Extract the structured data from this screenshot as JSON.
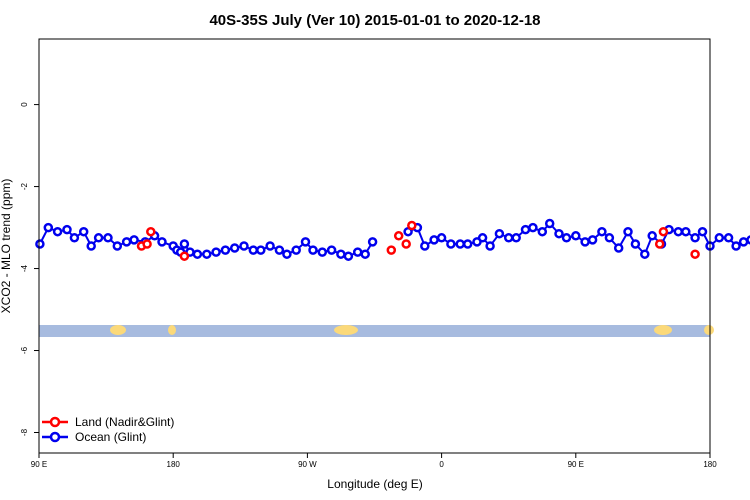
{
  "chart_data": {
    "type": "line",
    "title": "40S-35S July (Ver 10)   2015-01-01 to 2020-12-18",
    "xlabel": "Longitude (deg E)",
    "ylabel": "XCO2 - MLO trend (ppm)",
    "xlim": [
      90,
      450
    ],
    "ylim": [
      -8.5,
      1.6
    ],
    "x_tick_labels": [
      "90 E",
      "180",
      "90 W",
      "0",
      "90 E",
      "180"
    ],
    "x_tick_values": [
      90,
      180,
      270,
      360,
      450,
      540
    ],
    "y_tick_values": [
      0,
      -2,
      -4,
      -6,
      -8
    ],
    "grid": false,
    "legend_position": "bottom-left",
    "series": [
      {
        "name": "Land (Nadir&Glint)",
        "color": "#ff0000",
        "points": [
          [
            145,
            -3.45
          ],
          [
            148,
            -3.4
          ],
          [
            150,
            -3.1
          ],
          [
            168,
            -3.7
          ],
          [
            279,
            -3.55
          ],
          [
            283,
            -3.2
          ],
          [
            287,
            -3.4
          ],
          [
            290,
            -2.95
          ],
          [
            423,
            -3.4
          ],
          [
            425,
            -3.1
          ],
          [
            442,
            -3.65
          ]
        ]
      },
      {
        "name": "Ocean (Glint)",
        "color": "#0000ee",
        "points": [
          [
            90.5,
            -3.4
          ],
          [
            95,
            -3.0
          ],
          [
            100,
            -3.1
          ],
          [
            105,
            -3.05
          ],
          [
            109,
            -3.25
          ],
          [
            114,
            -3.1
          ],
          [
            118,
            -3.45
          ],
          [
            122,
            -3.25
          ],
          [
            127,
            -3.25
          ],
          [
            132,
            -3.45
          ],
          [
            137,
            -3.35
          ],
          [
            141,
            -3.3
          ],
          [
            147,
            -3.35
          ],
          [
            152,
            -3.2
          ],
          [
            156,
            -3.35
          ],
          [
            162,
            -3.45
          ],
          [
            164,
            -3.55
          ],
          [
            166,
            -3.6
          ],
          [
            168,
            -3.4
          ],
          [
            171,
            -3.6
          ],
          [
            175,
            -3.65
          ],
          [
            180,
            -3.65
          ],
          [
            185,
            -3.6
          ],
          [
            190,
            -3.55
          ],
          [
            195,
            -3.5
          ],
          [
            200,
            -3.45
          ],
          [
            205,
            -3.55
          ],
          [
            209,
            -3.55
          ],
          [
            214,
            -3.45
          ],
          [
            219,
            -3.55
          ],
          [
            223,
            -3.65
          ],
          [
            228,
            -3.55
          ],
          [
            233,
            -3.35
          ],
          [
            237,
            -3.55
          ],
          [
            242,
            -3.6
          ],
          [
            247,
            -3.55
          ],
          [
            252,
            -3.65
          ],
          [
            256,
            -3.7
          ],
          [
            261,
            -3.6
          ],
          [
            265,
            -3.65
          ],
          [
            269,
            -3.35
          ],
          [
            288,
            -3.1
          ],
          [
            293,
            -3.0
          ],
          [
            297,
            -3.45
          ],
          [
            302,
            -3.3
          ],
          [
            306,
            -3.25
          ],
          [
            311,
            -3.4
          ],
          [
            316,
            -3.4
          ],
          [
            320,
            -3.4
          ],
          [
            325,
            -3.35
          ],
          [
            328,
            -3.25
          ],
          [
            332,
            -3.45
          ],
          [
            337,
            -3.15
          ],
          [
            342,
            -3.25
          ],
          [
            346,
            -3.25
          ],
          [
            351,
            -3.05
          ],
          [
            355,
            -3.0
          ],
          [
            360,
            -3.1
          ],
          [
            364,
            -2.9
          ],
          [
            369,
            -3.15
          ],
          [
            373,
            -3.25
          ],
          [
            378,
            -3.2
          ],
          [
            383,
            -3.35
          ],
          [
            387,
            -3.3
          ],
          [
            392,
            -3.1
          ],
          [
            396,
            -3.25
          ],
          [
            401,
            -3.5
          ],
          [
            406,
            -3.1
          ],
          [
            410,
            -3.4
          ],
          [
            415,
            -3.65
          ],
          [
            419,
            -3.2
          ],
          [
            424,
            -3.4
          ],
          [
            428,
            -3.05
          ],
          [
            433,
            -3.1
          ],
          [
            437,
            -3.1
          ],
          [
            442,
            -3.25
          ],
          [
            446,
            -3.1
          ],
          [
            450,
            -3.45
          ],
          [
            455,
            -3.25
          ],
          [
            460,
            -3.25
          ],
          [
            464,
            -3.45
          ],
          [
            468,
            -3.35
          ],
          [
            472,
            -3.3
          ],
          [
            476,
            -3.35
          ],
          [
            480,
            -3.45
          ],
          [
            485,
            -3.55
          ],
          [
            489,
            -3.6
          ],
          [
            493,
            -3.4
          ]
        ]
      }
    ]
  }
}
